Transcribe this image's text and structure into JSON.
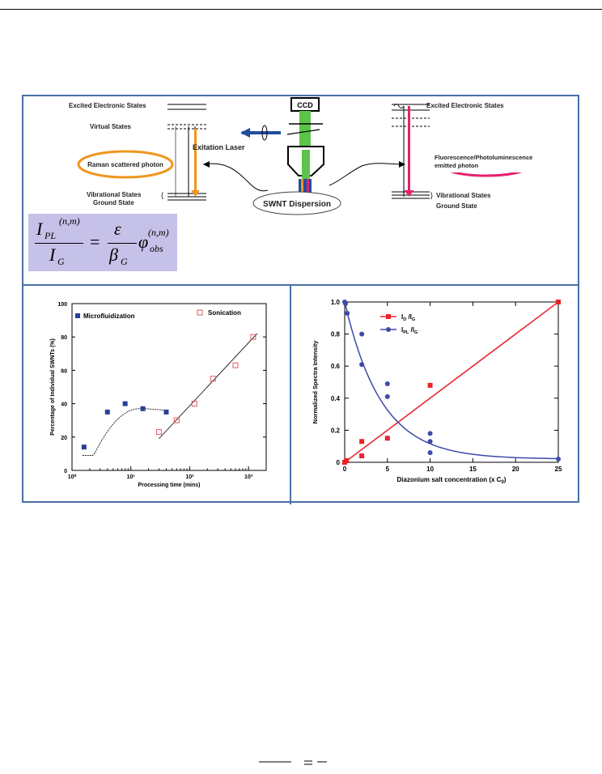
{
  "schematic": {
    "left_levels": {
      "excited": "Excited Electronic States",
      "virtual": "Virtual States",
      "vibrational": "Vibrational States",
      "ground": "Ground State"
    },
    "raman_label": "Raman scattered photon",
    "ccd_label": "CCD",
    "laser_label": "Exitation Laser",
    "dispersion_label": "SWNT Dispersion",
    "right_levels": {
      "excited": "Excited Electronic States",
      "vibrational": "Vibrational States",
      "ground": "Ground State"
    },
    "fluorescence_label_1": "Fluorescence/Photoluminescence",
    "fluorescence_label_2": "emitted photon",
    "colors": {
      "raman": "#f0961e",
      "fluorescence": "#e8206e",
      "laser": "#1f4e9c",
      "light": "#5cc34b",
      "equation_bg": "#c6c1e8"
    }
  },
  "equation": {
    "numerator_left": "I",
    "sub_pl": "PL",
    "sup_nm": "(n,m)",
    "denominator_left": "I",
    "sub_g": "G",
    "equals": "=",
    "epsilon": "ε",
    "beta": "β",
    "phi": "φ",
    "sub_obs": "obs",
    "sup_nm2": "(n,m)"
  },
  "chart_data": [
    {
      "type": "scatter",
      "ylabel": "Percentage of Individual SWNTs (%)",
      "xlabel": "Processing time (mins)",
      "x_scale": "log",
      "xlim": [
        1,
        2000
      ],
      "ylim": [
        0,
        100
      ],
      "yticks": [
        "0",
        "20",
        "40",
        "60",
        "80",
        "100"
      ],
      "xticks": [
        "10⁰",
        "10¹",
        "10²",
        "10³"
      ],
      "series": [
        {
          "name": "Microfluidization",
          "marker": "filled-square",
          "color": "#2a3f9a",
          "x": [
            1.6,
            4,
            8,
            16,
            40
          ],
          "y": [
            14,
            35,
            40,
            37,
            35
          ]
        },
        {
          "name": "Sonication",
          "marker": "open-square",
          "color": "#e05a60",
          "x": [
            30,
            60,
            120,
            250,
            600,
            1200
          ],
          "y": [
            23,
            30,
            40,
            55,
            63,
            80
          ]
        }
      ]
    },
    {
      "type": "scatter",
      "ylabel": "Normalized Spectra Intensity",
      "xlabel": "Diazonium salt concentration (x C",
      "xlabel_sub": "0",
      "xlabel_end": ")",
      "xlim": [
        0,
        25
      ],
      "ylim": [
        0,
        1.0
      ],
      "yticks": [
        "0",
        "0.2",
        "0.4",
        "0.6",
        "0.8",
        "1.0"
      ],
      "xticks": [
        "0",
        "5",
        "10",
        "15",
        "20",
        "25"
      ],
      "series": [
        {
          "name": "I_D/I_G",
          "label_main1": "I",
          "label_sub1": "D",
          "label_main2": "/I",
          "label_sub2": "G",
          "color": "#e8232a",
          "x": [
            0,
            0.2,
            2,
            2,
            5,
            10,
            25
          ],
          "y": [
            0.0,
            0.01,
            0.04,
            0.13,
            0.15,
            0.48,
            1.0
          ]
        },
        {
          "name": "I_PL/I_G",
          "label_main1": "I",
          "label_sub1": "PL",
          "label_main2": "/I",
          "label_sub2": "G",
          "color": "#3d4aa8",
          "x": [
            0,
            0.1,
            0.3,
            2,
            2,
            5,
            5,
            10,
            10,
            10,
            25
          ],
          "y": [
            1.0,
            0.99,
            0.93,
            0.8,
            0.61,
            0.49,
            0.41,
            0.18,
            0.13,
            0.06,
            0.02
          ]
        }
      ]
    }
  ]
}
